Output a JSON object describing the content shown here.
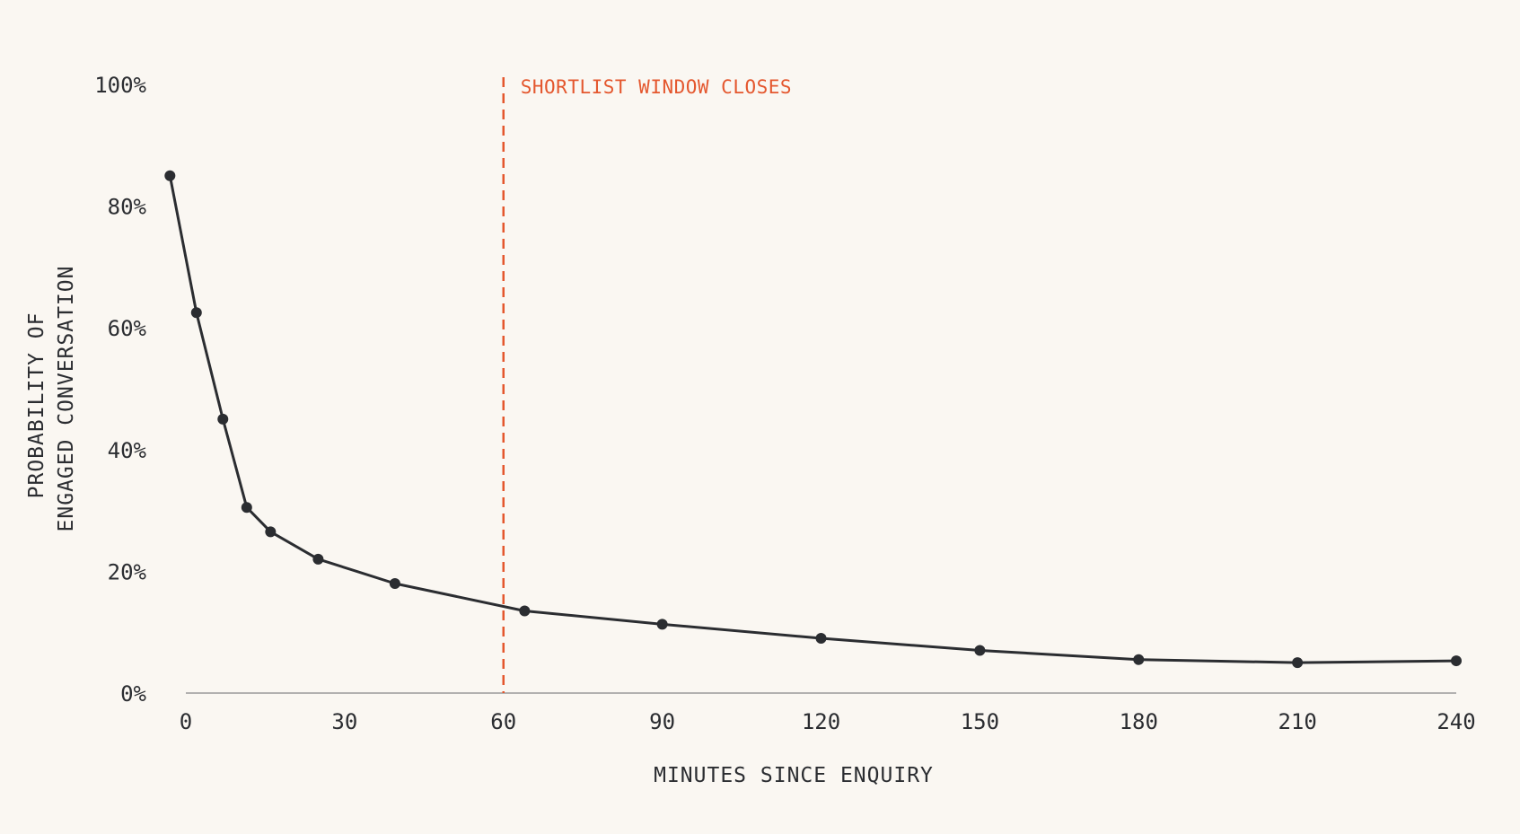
{
  "chart_data": {
    "type": "line",
    "title": "",
    "xlabel": "MINUTES SINCE ENQUIRY",
    "ylabel_lines": [
      "PROBABILITY OF",
      "ENGAGED CONVERSATION"
    ],
    "x_ticks": [
      0,
      30,
      60,
      90,
      120,
      150,
      180,
      210,
      240
    ],
    "y_ticks": [
      0,
      20,
      40,
      60,
      80,
      100
    ],
    "y_tick_suffix": "%",
    "xlim": [
      0,
      240
    ],
    "ylim": [
      0,
      100
    ],
    "grid": false,
    "series": [
      {
        "x": [
          -3,
          2,
          7,
          11.5,
          16,
          25,
          39.5,
          64,
          90,
          120,
          150,
          180,
          210,
          240
        ],
        "y": [
          85,
          62.5,
          45,
          30.5,
          26.5,
          22,
          18,
          13.5,
          11.3,
          9,
          7,
          5.5,
          5,
          5.3
        ]
      }
    ],
    "annotations": [
      {
        "type": "vline",
        "x": 60,
        "label": "SHORTLIST WINDOW CLOSES",
        "style": "dashed"
      }
    ],
    "colors": {
      "line": "#2b2d31",
      "annotation": "#e4572e",
      "axis": "#9a9a9a",
      "background": "#faf7f2"
    }
  }
}
